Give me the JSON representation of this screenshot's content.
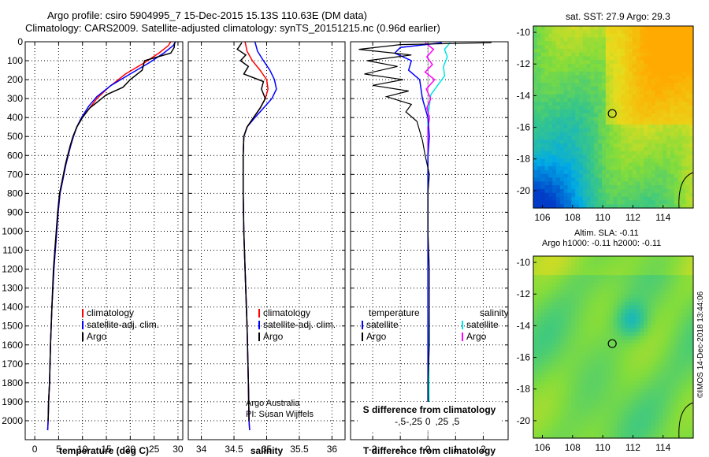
{
  "title_line1": "Argo profile: csiro 5904995_7 15-Dec-2015 15.13S 110.63E (DM data)",
  "title_line2": "Climatology: CARS2009. Satellite-adjusted climatology: synTS_20151215.nc (0.96d earlier)",
  "sst_title": "sat. SST: 27.9 Argo: 29.3",
  "sla_title1": "Altim. SLA: -0.11",
  "sla_title2": "Argo h1000: -0.11 h2000: -0.11",
  "stamp": "©IMOS 14-Dec-2018 13:44:06",
  "credit1": "Argo Australia",
  "credit2": "PI: Susan Wijffels",
  "colors": {
    "climatology": "#ff0000",
    "satellite": "#0000ff",
    "argo": "#000000",
    "sat_sal": "#00e5e5",
    "argo_sal": "#ff00ff"
  },
  "chart_data": [
    {
      "type": "line",
      "xlabel": "temperature (deg C)",
      "xlim": [
        -2,
        31
      ],
      "xticks": [
        0,
        5,
        10,
        15,
        20,
        25,
        30
      ],
      "ylim": [
        2100,
        0
      ],
      "yticks": [
        0,
        100,
        200,
        300,
        400,
        500,
        600,
        700,
        800,
        900,
        1000,
        1100,
        1200,
        1300,
        1400,
        1500,
        1600,
        1700,
        1800,
        1900,
        2000
      ],
      "legend": [
        "climatology",
        "satellite-adj. clim.",
        "Argo"
      ],
      "series": [
        {
          "name": "climatology",
          "x": [
            28.5,
            28,
            26,
            23,
            19,
            15.5,
            13,
            11.5,
            9.8,
            8.8,
            8.1,
            7.5,
            7.0,
            6.5,
            6.1,
            5.7,
            5.3,
            4.9,
            4.6,
            4.3,
            4.0,
            3.6,
            3.3,
            3.1,
            2.9,
            2.8,
            2.7
          ],
          "y": [
            0,
            20,
            60,
            110,
            170,
            240,
            300,
            350,
            400,
            450,
            500,
            550,
            600,
            650,
            700,
            750,
            800,
            900,
            1000,
            1100,
            1200,
            1400,
            1600,
            1800,
            1900,
            2000,
            2050
          ]
        },
        {
          "name": "satellite-adj. clim.",
          "x": [
            29.5,
            29,
            27,
            24,
            20,
            16,
            13,
            11.3,
            9.8,
            8.8,
            8.1,
            7.5,
            7.0,
            6.5,
            6.1,
            5.7,
            5.3,
            4.9,
            4.6,
            4.3,
            4.0,
            3.6,
            3.3,
            3.1,
            2.9,
            2.8,
            2.7
          ],
          "y": [
            0,
            20,
            60,
            110,
            170,
            230,
            290,
            340,
            400,
            450,
            500,
            550,
            600,
            650,
            700,
            750,
            800,
            900,
            1000,
            1100,
            1200,
            1400,
            1600,
            1800,
            1900,
            2000,
            2050
          ]
        },
        {
          "name": "Argo",
          "x": [
            29.3,
            29.2,
            28.5,
            23,
            22.5,
            20,
            18.5,
            15,
            13,
            11.5,
            10,
            8.8,
            8.0,
            7.4,
            6.9,
            6.4,
            6.0,
            5.6,
            5.2,
            4.8,
            4.5,
            4.2,
            3.9,
            3.6,
            3.3,
            3.1,
            2.9,
            2.8
          ],
          "y": [
            5,
            30,
            60,
            100,
            150,
            200,
            240,
            280,
            320,
            350,
            400,
            450,
            500,
            550,
            600,
            650,
            700,
            750,
            800,
            900,
            1000,
            1100,
            1200,
            1400,
            1600,
            1800,
            1900,
            2000
          ]
        }
      ]
    },
    {
      "type": "line",
      "xlabel": "salinity",
      "xlim": [
        33.8,
        36.2
      ],
      "xticks": [
        34,
        34.5,
        35,
        35.5,
        36
      ],
      "ylim": [
        2100,
        0
      ],
      "legend": [
        "climatology",
        "satellite-adj. clim.",
        "Argo"
      ],
      "series": [
        {
          "name": "climatology",
          "x": [
            34.67,
            34.7,
            34.78,
            34.9,
            35.0,
            35.02,
            34.98,
            34.9,
            34.8,
            34.7,
            34.65,
            34.64,
            34.64,
            34.65,
            34.67,
            34.7,
            34.72,
            34.73,
            34.74
          ],
          "y": [
            0,
            50,
            100,
            150,
            200,
            250,
            300,
            350,
            400,
            450,
            500,
            600,
            800,
            1000,
            1200,
            1500,
            1800,
            2000,
            2050
          ]
        },
        {
          "name": "satellite-adj. clim.",
          "x": [
            34.82,
            34.86,
            34.95,
            35.05,
            35.12,
            35.15,
            35.08,
            34.95,
            34.82,
            34.7,
            34.65,
            34.64,
            34.64,
            34.65,
            34.67,
            34.7,
            34.72,
            34.73,
            34.74
          ],
          "y": [
            0,
            50,
            100,
            150,
            200,
            250,
            300,
            350,
            400,
            450,
            500,
            600,
            800,
            1000,
            1200,
            1500,
            1800,
            2000,
            2050
          ]
        },
        {
          "name": "Argo",
          "x": [
            34.62,
            34.55,
            34.68,
            34.6,
            34.72,
            34.65,
            34.95,
            34.92,
            34.98,
            34.9,
            34.8,
            34.7,
            34.65,
            34.64,
            34.64,
            34.65,
            34.67,
            34.7,
            34.72,
            34.73
          ],
          "y": [
            5,
            40,
            70,
            100,
            130,
            170,
            210,
            250,
            300,
            350,
            400,
            450,
            500,
            600,
            800,
            1000,
            1200,
            1500,
            1800,
            2000
          ]
        }
      ]
    },
    {
      "type": "line",
      "xlabel": "T difference from climatology",
      "xlim": [
        -2.8,
        2.9
      ],
      "xticks": [
        -2,
        -1,
        0,
        1,
        2
      ],
      "secondary_xlabel": "S difference from climatology",
      "secondary_xticks": [
        -0.5,
        -0.25,
        0,
        0.25,
        0.5
      ],
      "ylim": [
        2100,
        0
      ],
      "legend": [
        "temperature",
        "satellite",
        "Argo",
        "salinity",
        "satellite",
        "Argo"
      ],
      "series": [
        {
          "name": "temperature satellite",
          "x": [
            0.5,
            -1,
            -1.2,
            -0.6,
            -0.7,
            -0.3,
            -0.2,
            0,
            0.05,
            0,
            0,
            0,
            0,
            0,
            0
          ],
          "y": [
            5,
            30,
            60,
            100,
            150,
            200,
            300,
            400,
            500,
            600,
            800,
            1000,
            1400,
            1800,
            2000
          ]
        },
        {
          "name": "temperature Argo",
          "x": [
            2.3,
            -1,
            -2.5,
            -0.6,
            -2.2,
            -1.1,
            -2.3,
            -0.9,
            -2,
            -0.7,
            -1.5,
            -0.6,
            -0.8,
            -0.4,
            -0.3,
            -0.2,
            -0.1,
            0.05,
            0,
            0,
            0.05,
            0.05,
            0.05,
            0,
            0.02
          ],
          "y": [
            5,
            15,
            40,
            70,
            100,
            130,
            170,
            200,
            230,
            260,
            290,
            330,
            370,
            420,
            470,
            520,
            600,
            700,
            800,
            1000,
            1200,
            1400,
            1600,
            1800,
            2000
          ]
        },
        {
          "name": "salinity satellite",
          "x": [
            0.4,
            0.3,
            0.35,
            0.28,
            0.3,
            0.2,
            0.05,
            0,
            0,
            0,
            0,
            0,
            0,
            0.02,
            0.02
          ],
          "y": [
            5,
            40,
            80,
            130,
            180,
            220,
            280,
            400,
            500,
            600,
            800,
            1000,
            1400,
            1800,
            2000
          ]
        },
        {
          "name": "salinity Argo",
          "x": [
            -0.05,
            0.1,
            -0.02,
            0.08,
            -0.05,
            0.12,
            -0.03,
            0.05,
            -0.02,
            0.03,
            0,
            0,
            0,
            0
          ],
          "y": [
            5,
            40,
            80,
            120,
            160,
            200,
            250,
            300,
            350,
            400,
            450,
            500,
            550,
            600
          ]
        }
      ]
    },
    {
      "type": "heatmap",
      "title": "sat. SST: 27.9 Argo: 29.3",
      "xlim": [
        105.4,
        116
      ],
      "xticks": [
        106,
        108,
        110,
        112,
        114
      ],
      "ylim": [
        -21.1,
        -9.6
      ],
      "yticks": [
        -10,
        -12,
        -14,
        -16,
        -18,
        -20
      ],
      "marker": [
        110.63,
        -15.13
      ]
    },
    {
      "type": "heatmap",
      "title": "Altim. SLA: -0.11",
      "xlim": [
        105.4,
        116
      ],
      "xticks": [
        106,
        108,
        110,
        112,
        114
      ],
      "ylim": [
        -21.1,
        -9.6
      ],
      "yticks": [
        -10,
        -12,
        -14,
        -16,
        -18,
        -20
      ],
      "marker": [
        110.63,
        -15.13
      ]
    }
  ]
}
